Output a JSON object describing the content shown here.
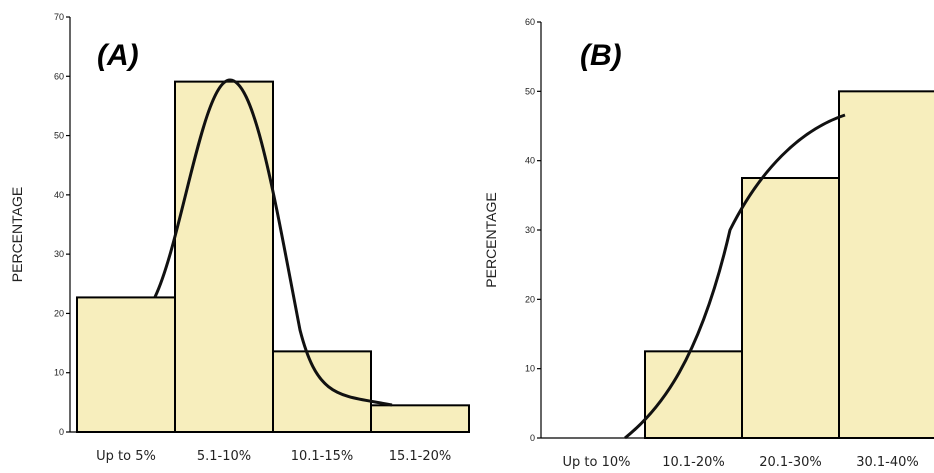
{
  "chart_data": [
    {
      "type": "bar",
      "panel_label": "(A)",
      "ylabel": "PERCENTAGE",
      "ylim": [
        0,
        70
      ],
      "yticks": [
        "0",
        "10",
        "20",
        "30",
        "40",
        "50",
        "60",
        "70"
      ],
      "categories": [
        "Up to 5%",
        "5.1-10%",
        "10.1-15%",
        "15.1-20%"
      ],
      "values": [
        22.7,
        59.1,
        13.6,
        4.5
      ],
      "overlay_curve": "fitted smooth curve"
    },
    {
      "type": "bar",
      "panel_label": "(B)",
      "ylabel": "PERCENTAGE",
      "ylim": [
        0,
        60
      ],
      "yticks": [
        "0",
        "10",
        "20",
        "30",
        "40",
        "50",
        "60"
      ],
      "categories": [
        "Up to 10%",
        "10.1-20%",
        "20.1-30%",
        "30.1-40%"
      ],
      "values": [
        0,
        12.5,
        37.5,
        50
      ],
      "overlay_curve": "fitted smooth curve"
    }
  ]
}
